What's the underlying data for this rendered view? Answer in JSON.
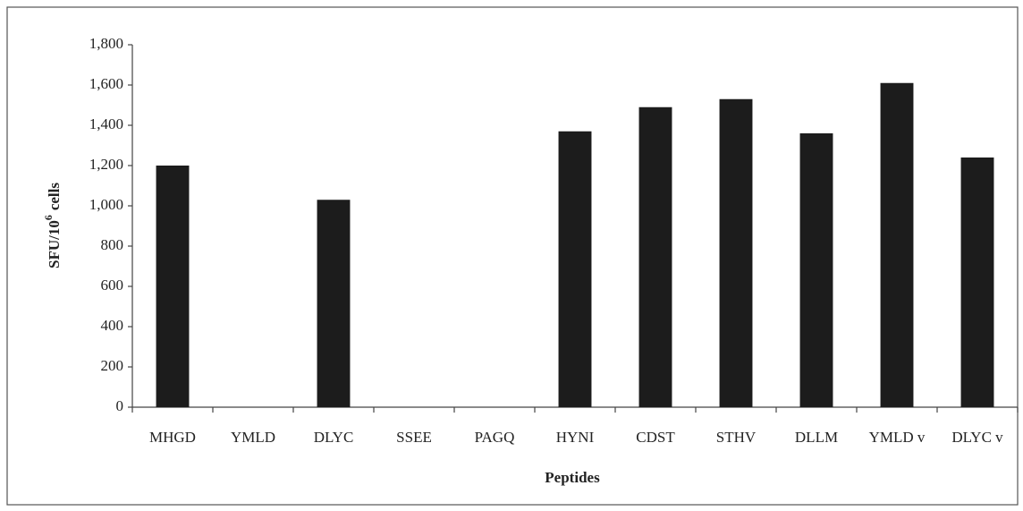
{
  "chart_data": {
    "type": "bar",
    "x_label": "Peptides",
    "y_label": {
      "main": "SFU/10",
      "sup": "6",
      "rest": "cells"
    },
    "categories": [
      "MHGD",
      "YMLD",
      "DLYC",
      "SSEE",
      "PAGQ",
      "HYNI",
      "CDST",
      "STHV",
      "DLLM",
      "YMLD v",
      "DLYC v"
    ],
    "values": [
      1200,
      0,
      1030,
      0,
      0,
      1370,
      1490,
      1530,
      1360,
      1610,
      1240
    ],
    "color": "#1c1c1c",
    "ylim": [
      0,
      1800
    ],
    "yticks": [
      0,
      200,
      400,
      600,
      800,
      {
        "value": 1000,
        "label": "1,000"
      },
      {
        "value": 1200,
        "label": "1,200"
      },
      {
        "value": 1400,
        "label": "1,400"
      },
      {
        "value": 1600,
        "label": "1,600"
      },
      {
        "value": 1800,
        "label": "1,800"
      }
    ],
    "grid": false
  }
}
